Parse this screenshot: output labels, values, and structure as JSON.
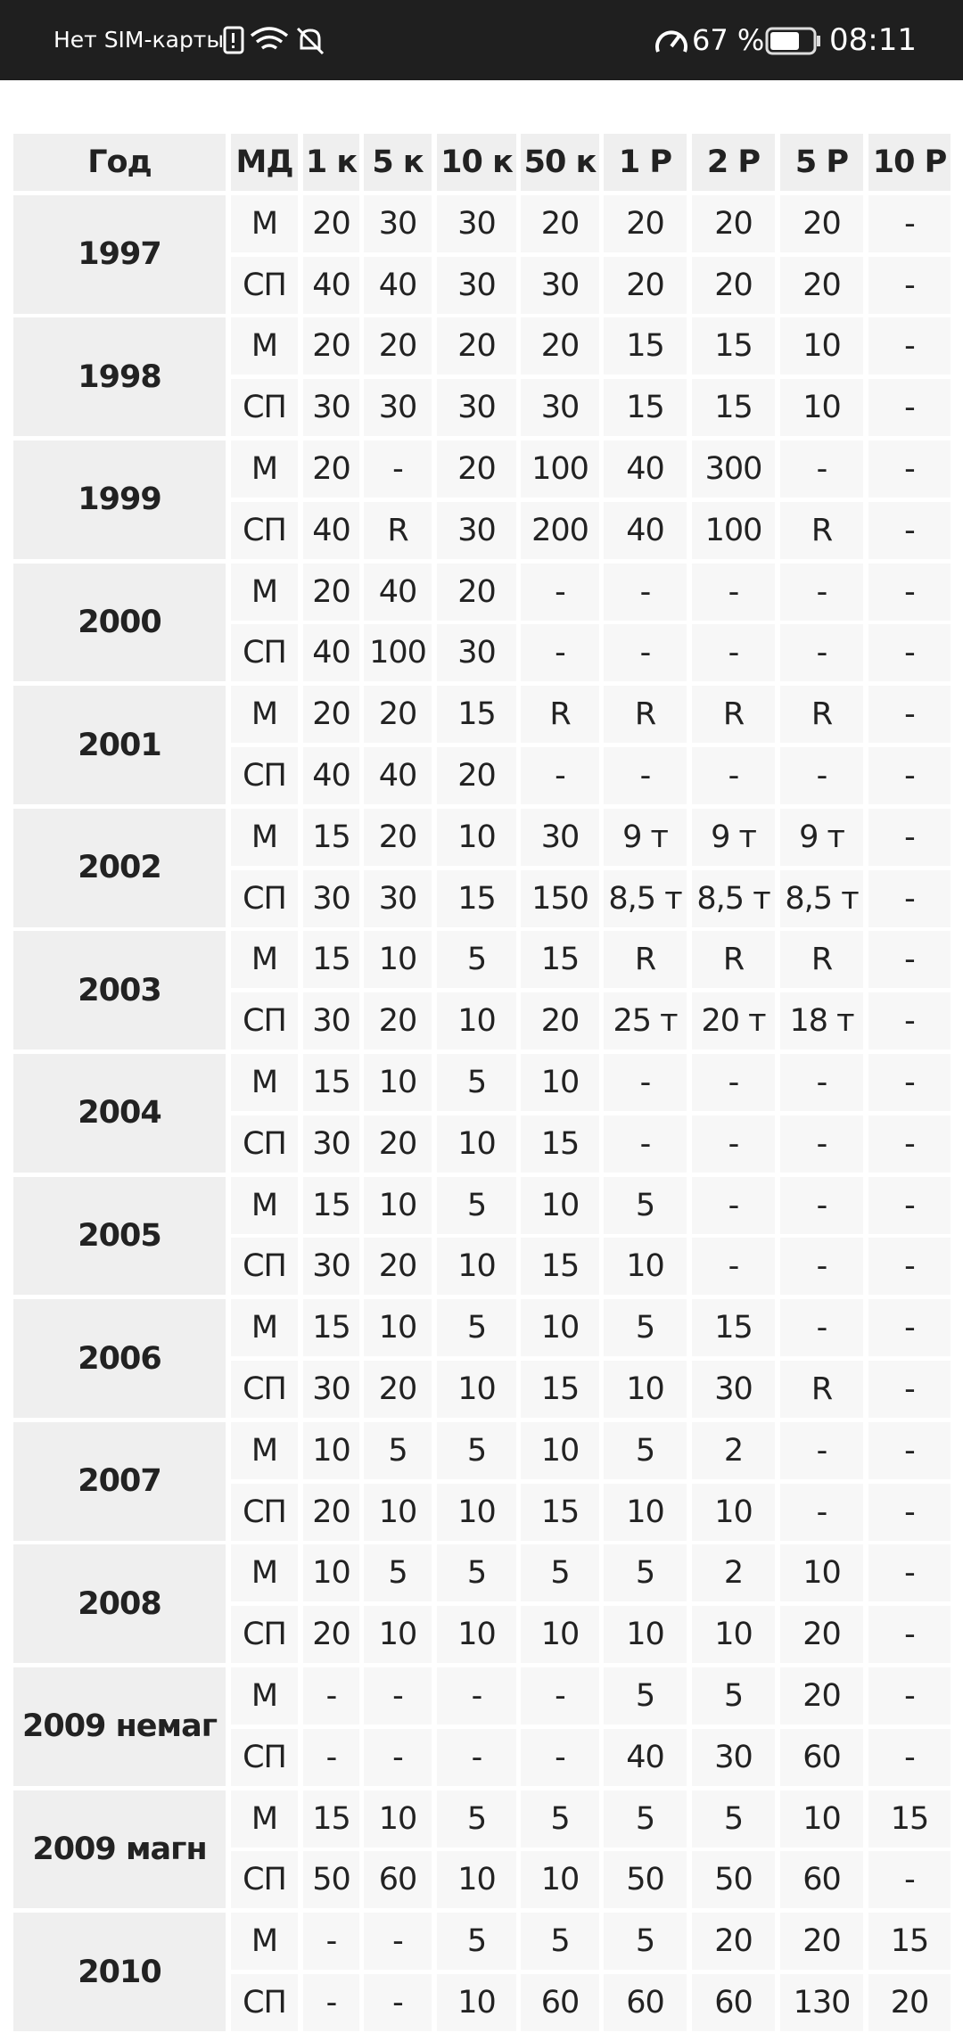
{
  "status_bar": {
    "carrier": "Нет SIM-карты",
    "battery": "67 %",
    "time": "08:11"
  },
  "table": {
    "headers": [
      "Год",
      "МД",
      "1 к",
      "5 к",
      "10 к",
      "50 к",
      "1 Р",
      "2 Р",
      "5 Р",
      "10 Р"
    ],
    "groups": [
      {
        "year": "1997",
        "rows": [
          {
            "label": "М",
            "values": [
              20,
              30,
              30,
              20,
              20,
              20,
              20,
              "-"
            ]
          },
          {
            "label": "СП",
            "values": [
              40,
              40,
              30,
              30,
              20,
              20,
              20,
              "-"
            ]
          }
        ]
      },
      {
        "year": "1998",
        "rows": [
          {
            "label": "М",
            "values": [
              20,
              20,
              20,
              20,
              15,
              15,
              10,
              "-"
            ]
          },
          {
            "label": "СП",
            "values": [
              30,
              30,
              30,
              30,
              15,
              15,
              10,
              "-"
            ]
          }
        ]
      },
      {
        "year": "1999",
        "rows": [
          {
            "label": "М",
            "values": [
              20,
              "-",
              20,
              100,
              40,
              300,
              "-",
              "-"
            ]
          },
          {
            "label": "СП",
            "values": [
              40,
              "R",
              30,
              200,
              40,
              100,
              "R",
              "-"
            ]
          }
        ]
      },
      {
        "year": "2000",
        "rows": [
          {
            "label": "М",
            "values": [
              20,
              40,
              20,
              "-",
              "-",
              "-",
              "-",
              "-"
            ]
          },
          {
            "label": "СП",
            "values": [
              40,
              100,
              30,
              "-",
              "-",
              "-",
              "-",
              "-"
            ]
          }
        ]
      },
      {
        "year": "2001",
        "rows": [
          {
            "label": "М",
            "values": [
              20,
              20,
              15,
              "R",
              "R",
              "R",
              "R",
              "-"
            ]
          },
          {
            "label": "СП",
            "values": [
              40,
              40,
              20,
              "-",
              "-",
              "-",
              "-",
              "-"
            ]
          }
        ]
      },
      {
        "year": "2002",
        "rows": [
          {
            "label": "М",
            "values": [
              15,
              20,
              10,
              30,
              "9 т",
              "9 т",
              "9 т",
              "-"
            ]
          },
          {
            "label": "СП",
            "values": [
              30,
              30,
              15,
              150,
              "8,5 т",
              "8,5 т",
              "8,5 т",
              "-"
            ]
          }
        ]
      },
      {
        "year": "2003",
        "rows": [
          {
            "label": "М",
            "values": [
              15,
              10,
              5,
              15,
              "R",
              "R",
              "R",
              "-"
            ]
          },
          {
            "label": "СП",
            "values": [
              30,
              20,
              10,
              20,
              "25 т",
              "20 т",
              "18 т",
              "-"
            ]
          }
        ]
      },
      {
        "year": "2004",
        "rows": [
          {
            "label": "М",
            "values": [
              15,
              10,
              5,
              10,
              "-",
              "-",
              "-",
              "-"
            ]
          },
          {
            "label": "СП",
            "values": [
              30,
              20,
              10,
              15,
              "-",
              "-",
              "-",
              "-"
            ]
          }
        ]
      },
      {
        "year": "2005",
        "rows": [
          {
            "label": "М",
            "values": [
              15,
              10,
              5,
              10,
              5,
              "-",
              "-",
              "-"
            ]
          },
          {
            "label": "СП",
            "values": [
              30,
              20,
              10,
              15,
              10,
              "-",
              "-",
              "-"
            ]
          }
        ]
      },
      {
        "year": "2006",
        "rows": [
          {
            "label": "М",
            "values": [
              15,
              10,
              5,
              10,
              5,
              15,
              "-",
              "-"
            ]
          },
          {
            "label": "СП",
            "values": [
              30,
              20,
              10,
              15,
              10,
              30,
              "R",
              "-"
            ]
          }
        ]
      },
      {
        "year": "2007",
        "rows": [
          {
            "label": "М",
            "values": [
              10,
              5,
              5,
              10,
              5,
              2,
              "-",
              "-"
            ]
          },
          {
            "label": "СП",
            "values": [
              20,
              10,
              10,
              15,
              10,
              10,
              "-",
              "-"
            ]
          }
        ]
      },
      {
        "year": "2008",
        "rows": [
          {
            "label": "М",
            "values": [
              10,
              5,
              5,
              5,
              5,
              2,
              10,
              "-"
            ]
          },
          {
            "label": "СП",
            "values": [
              20,
              10,
              10,
              10,
              10,
              10,
              20,
              "-"
            ]
          }
        ]
      },
      {
        "year": "2009 немаг",
        "rows": [
          {
            "label": "М",
            "values": [
              "-",
              "-",
              "-",
              "-",
              5,
              5,
              20,
              "-"
            ]
          },
          {
            "label": "СП",
            "values": [
              "-",
              "-",
              "-",
              "-",
              40,
              30,
              60,
              "-"
            ]
          }
        ]
      },
      {
        "year": "2009 магн",
        "rows": [
          {
            "label": "М",
            "values": [
              15,
              10,
              5,
              5,
              5,
              5,
              10,
              15
            ]
          },
          {
            "label": "СП",
            "values": [
              50,
              60,
              10,
              10,
              50,
              50,
              60,
              "-"
            ]
          }
        ]
      },
      {
        "year": "2010",
        "rows": [
          {
            "label": "М",
            "values": [
              "-",
              "-",
              5,
              5,
              5,
              20,
              20,
              15
            ]
          },
          {
            "label": "СП",
            "values": [
              "-",
              "-",
              10,
              60,
              60,
              60,
              130,
              20
            ]
          }
        ]
      }
    ]
  }
}
